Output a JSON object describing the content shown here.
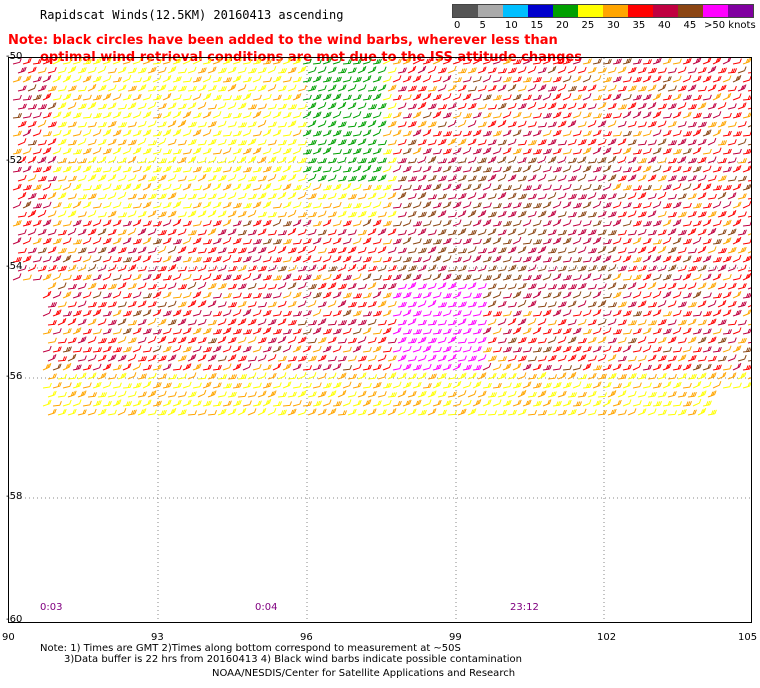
{
  "title": "Rapidscat Winds(12.5KM) 20160413 ascending",
  "note": {
    "line1": "Note: black circles have been added to the wind barbs, wherever less than",
    "line2": "optimal wind retrieval conditions are met due to the ISS attitude changes"
  },
  "legend": {
    "unit_label": ">50 knots",
    "ticks": [
      "0",
      "5",
      "10",
      "15",
      "20",
      "25",
      "30",
      "35",
      "40",
      "45"
    ],
    "colors": [
      "#555555",
      "#aaaaaa",
      "#00bfff",
      "#0000cd",
      "#00a000",
      "#ffff00",
      "#ffa500",
      "#ff0000",
      "#c00040",
      "#8b4513",
      "#ff00ff",
      "#8000a0"
    ]
  },
  "axes": {
    "lat_labels": [
      "-50",
      "-52",
      "-54",
      "-56",
      "-58",
      "-60"
    ],
    "lon_labels": [
      "90",
      "93",
      "96",
      "99",
      "102",
      "105"
    ]
  },
  "time_labels": [
    "0:03",
    "0:04",
    "23:12"
  ],
  "footnote": {
    "line1": "Note: 1) Times are GMT 2)Times along bottom correspond to measurement at ~50S",
    "line2": "3)Data buffer is 22 hrs from 20160413 4) Black wind barbs indicate possible contamination",
    "credit": "NOAA/NESDIS/Center for Satellite Applications and Research"
  }
}
